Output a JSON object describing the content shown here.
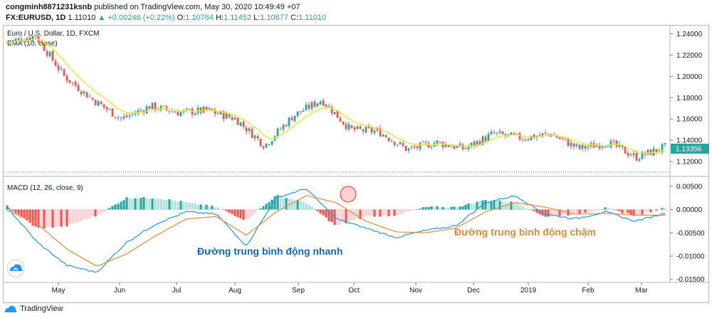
{
  "header": {
    "username": "congminh8871231ksnb",
    "published": "published on TradingView.com, May 30, 2020 10:49:49 +07",
    "symbol": "FX:EURUSD, 1D",
    "last": "1.11010",
    "arrow": "▲",
    "change": "+0.00246 (+0.22%)",
    "o_label": "O:",
    "o_value": "1.10764",
    "h_label": "H:",
    "h_value": "1.11452",
    "l_label": "L:",
    "l_value": "1.10677",
    "c_label": "C:",
    "c_value": "1.11010"
  },
  "price_pane": {
    "title": "Euro / U.S. Dollar, 1D, FXCM",
    "indicator": "EMA (10, close)",
    "last_price_tag": "1.13356",
    "y_ticks": [
      "1.24000",
      "1.22000",
      "1.20000",
      "1.18000",
      "1.16000",
      "1.14000",
      "1.12000"
    ]
  },
  "macd_pane": {
    "title": "MACD (12, 26, close, 9)",
    "y_ticks": [
      "0.00500",
      "0.00000",
      "-0.00500",
      "-0.01000",
      "-0.01500"
    ]
  },
  "x_axis": [
    "May",
    "Jun",
    "Jul",
    "Aug",
    "Sep",
    "Oct",
    "Nov",
    "Dec",
    "2019",
    "Feb",
    "Mar"
  ],
  "annotations": {
    "fast": "Đường trung bình động nhanh",
    "slow": "Đường trung bình động chậm"
  },
  "footer": {
    "brand": "TradingView"
  },
  "colors": {
    "up": "#26a69a",
    "down": "#ef5350",
    "ema": "#f5e23a",
    "macd_line": "#2196f3",
    "signal_line": "#e58a3a",
    "hist_up_strong": "#26a69a",
    "hist_up_weak": "#b2dfdb",
    "hist_down_strong": "#ef5350",
    "hist_down_weak": "#ffcdd2",
    "fast_label": "#1565c0",
    "slow_label": "#d98c3a"
  },
  "chart_data": {
    "type": "line",
    "title": "Euro / U.S. Dollar, 1D, FXCM",
    "price_range": [
      1.11,
      1.245
    ],
    "macd_range": [
      -0.0155,
      0.0065
    ],
    "price_keypoints": [
      {
        "x": "Apr",
        "y": 1.232
      },
      {
        "x": "late Apr",
        "y": 1.238
      },
      {
        "x": "May",
        "y": 1.2
      },
      {
        "x": "mid May",
        "y": 1.178
      },
      {
        "x": "Jun",
        "y": 1.16
      },
      {
        "x": "mid Jun",
        "y": 1.172
      },
      {
        "x": "Jul",
        "y": 1.166
      },
      {
        "x": "mid Jul",
        "y": 1.168
      },
      {
        "x": "Aug",
        "y": 1.16
      },
      {
        "x": "mid Aug",
        "y": 1.135
      },
      {
        "x": "Sep",
        "y": 1.163
      },
      {
        "x": "late Sep",
        "y": 1.178
      },
      {
        "x": "Oct",
        "y": 1.15
      },
      {
        "x": "mid Oct",
        "y": 1.148
      },
      {
        "x": "Nov",
        "y": 1.131
      },
      {
        "x": "mid Nov",
        "y": 1.138
      },
      {
        "x": "Dec",
        "y": 1.132
      },
      {
        "x": "2019",
        "y": 1.146
      },
      {
        "x": "mid Jan",
        "y": 1.142
      },
      {
        "x": "Feb",
        "y": 1.146
      },
      {
        "x": "mid Feb",
        "y": 1.132
      },
      {
        "x": "Mar",
        "y": 1.138
      },
      {
        "x": "mid Mar",
        "y": 1.124
      },
      {
        "x": "end",
        "y": 1.13356
      }
    ],
    "macd_keypoints": [
      {
        "x": "Apr",
        "macd": 0.0005,
        "signal": -0.0002
      },
      {
        "x": "May",
        "macd": -0.007,
        "signal": -0.003
      },
      {
        "x": "mid May",
        "macd": -0.012,
        "signal": -0.0085
      },
      {
        "x": "Jun",
        "macd": -0.0135,
        "signal": -0.0122
      },
      {
        "x": "mid Jun",
        "macd": -0.007,
        "signal": -0.0095
      },
      {
        "x": "Jul",
        "macd": -0.003,
        "signal": -0.0055
      },
      {
        "x": "mid Jul",
        "macd": -0.0005,
        "signal": -0.002
      },
      {
        "x": "Aug",
        "macd": -0.001,
        "signal": -0.0015
      },
      {
        "x": "mid Aug",
        "macd": -0.0078,
        "signal": -0.0055
      },
      {
        "x": "Sep",
        "macd": 0.0025,
        "signal": -0.0005
      },
      {
        "x": "late Sep",
        "macd": 0.0045,
        "signal": 0.003
      },
      {
        "x": "Oct",
        "macd": -0.002,
        "signal": 0.0015
      },
      {
        "x": "mid Oct",
        "macd": -0.004,
        "signal": -0.0025
      },
      {
        "x": "Nov",
        "macd": -0.006,
        "signal": -0.0048
      },
      {
        "x": "mid Nov",
        "macd": -0.0045,
        "signal": -0.005
      },
      {
        "x": "Dec",
        "macd": -0.0035,
        "signal": -0.004
      },
      {
        "x": "2019",
        "macd": 0.0015,
        "signal": -0.0005
      },
      {
        "x": "mid Jan",
        "macd": 0.003,
        "signal": 0.0015
      },
      {
        "x": "Feb",
        "macd": -0.001,
        "signal": 0.0005
      },
      {
        "x": "mid Feb",
        "macd": -0.002,
        "signal": -0.001
      },
      {
        "x": "Mar",
        "macd": -0.0005,
        "signal": -0.0008
      },
      {
        "x": "mid Mar",
        "macd": -0.0025,
        "signal": -0.0012
      },
      {
        "x": "end",
        "macd": -0.0008,
        "signal": -0.0012
      }
    ]
  }
}
